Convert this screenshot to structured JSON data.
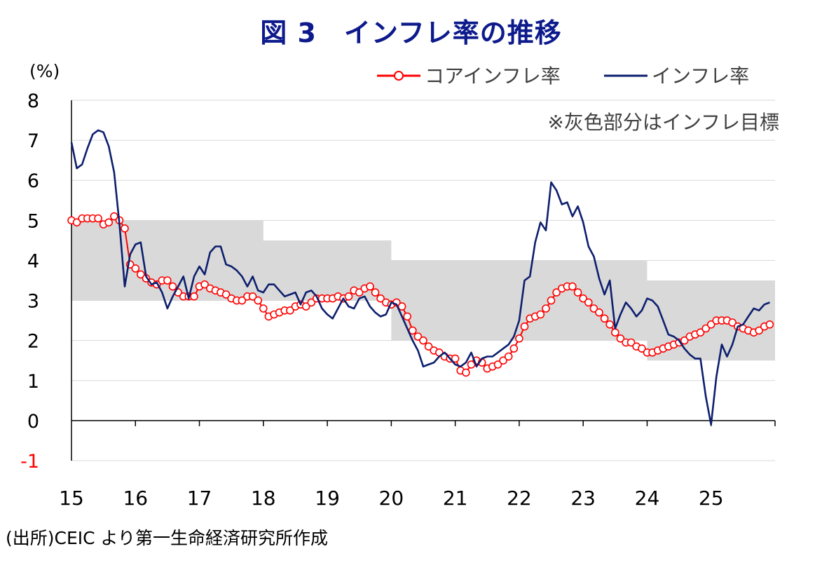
{
  "title": "図 3　インフレ率の推移",
  "source": "(出所)CEIC より第一生命経済研究所作成",
  "colors": {
    "title": "#0d1a8c",
    "core": "#ff0000",
    "headline": "#0d1f6e",
    "band": "#d9d9d9",
    "negative_tick": "#ff0000",
    "grid": "#d9d9d9"
  },
  "chart_data": {
    "type": "line",
    "ylabel": "(%)",
    "ylim": [
      -1,
      8
    ],
    "yticks": [
      -1,
      0,
      1,
      2,
      3,
      4,
      5,
      6,
      7,
      8
    ],
    "xlim": [
      2015,
      2026
    ],
    "xticks": [
      {
        "value": 2015,
        "label": "15"
      },
      {
        "value": 2016,
        "label": "16"
      },
      {
        "value": 2017,
        "label": "17"
      },
      {
        "value": 2018,
        "label": "18"
      },
      {
        "value": 2019,
        "label": "19"
      },
      {
        "value": 2020,
        "label": "20"
      },
      {
        "value": 2021,
        "label": "21"
      },
      {
        "value": 2022,
        "label": "22"
      },
      {
        "value": 2023,
        "label": "23"
      },
      {
        "value": 2024,
        "label": "24"
      },
      {
        "value": 2025,
        "label": "25"
      }
    ],
    "grid": "horizontal",
    "legend_position": "top-right",
    "annotation": "※灰色部分はインフレ目標",
    "target_band": [
      {
        "from": 2015,
        "to": 2018,
        "low": 3,
        "high": 5
      },
      {
        "from": 2018,
        "to": 2020,
        "low": 3,
        "high": 4.5
      },
      {
        "from": 2020,
        "to": 2024,
        "low": 2,
        "high": 4
      },
      {
        "from": 2024,
        "to": 2026,
        "low": 1.5,
        "high": 3.5
      }
    ],
    "series": [
      {
        "name": "コアインフレ率",
        "style": "line-with-circle-markers",
        "x": [
          2015.0,
          2015.083,
          2015.167,
          2015.25,
          2015.333,
          2015.417,
          2015.5,
          2015.583,
          2015.667,
          2015.75,
          2015.833,
          2015.917,
          2016.0,
          2016.083,
          2016.167,
          2016.25,
          2016.333,
          2016.417,
          2016.5,
          2016.583,
          2016.667,
          2016.75,
          2016.833,
          2016.917,
          2017.0,
          2017.083,
          2017.167,
          2017.25,
          2017.333,
          2017.417,
          2017.5,
          2017.583,
          2017.667,
          2017.75,
          2017.833,
          2017.917,
          2018.0,
          2018.083,
          2018.167,
          2018.25,
          2018.333,
          2018.417,
          2018.5,
          2018.583,
          2018.667,
          2018.75,
          2018.833,
          2018.917,
          2019.0,
          2019.083,
          2019.167,
          2019.25,
          2019.333,
          2019.417,
          2019.5,
          2019.583,
          2019.667,
          2019.75,
          2019.833,
          2019.917,
          2020.0,
          2020.083,
          2020.167,
          2020.25,
          2020.333,
          2020.417,
          2020.5,
          2020.583,
          2020.667,
          2020.75,
          2020.833,
          2020.917,
          2021.0,
          2021.083,
          2021.167,
          2021.25,
          2021.333,
          2021.417,
          2021.5,
          2021.583,
          2021.667,
          2021.75,
          2021.833,
          2021.917,
          2022.0,
          2022.083,
          2022.167,
          2022.25,
          2022.333,
          2022.417,
          2022.5,
          2022.583,
          2022.667,
          2022.75,
          2022.833,
          2022.917,
          2023.0,
          2023.083,
          2023.167,
          2023.25,
          2023.333,
          2023.417,
          2023.5,
          2023.583,
          2023.667,
          2023.75,
          2023.833,
          2023.917,
          2024.0,
          2024.083,
          2024.167,
          2024.25,
          2024.333,
          2024.417,
          2024.5,
          2024.583,
          2024.667,
          2024.75,
          2024.833,
          2024.917,
          2025.0,
          2025.083,
          2025.167,
          2025.25,
          2025.333,
          2025.417,
          2025.5,
          2025.583,
          2025.667,
          2025.75,
          2025.833,
          2025.917
        ],
        "values": [
          5.0,
          4.95,
          5.05,
          5.05,
          5.05,
          5.05,
          4.9,
          4.95,
          5.1,
          5.0,
          4.8,
          3.9,
          3.8,
          3.65,
          3.55,
          3.45,
          3.4,
          3.5,
          3.5,
          3.35,
          3.2,
          3.1,
          3.1,
          3.1,
          3.35,
          3.4,
          3.3,
          3.25,
          3.2,
          3.15,
          3.05,
          3.0,
          3.0,
          3.1,
          3.1,
          3.0,
          2.8,
          2.6,
          2.65,
          2.7,
          2.75,
          2.75,
          2.85,
          2.9,
          2.85,
          2.95,
          3.05,
          3.05,
          3.05,
          3.05,
          3.1,
          3.05,
          3.1,
          3.25,
          3.2,
          3.3,
          3.35,
          3.2,
          3.05,
          2.95,
          2.9,
          2.95,
          2.85,
          2.6,
          2.25,
          2.1,
          2.0,
          1.85,
          1.75,
          1.7,
          1.6,
          1.55,
          1.55,
          1.25,
          1.2,
          1.4,
          1.5,
          1.45,
          1.3,
          1.35,
          1.4,
          1.5,
          1.6,
          1.8,
          2.05,
          2.35,
          2.55,
          2.6,
          2.65,
          2.8,
          3.0,
          3.2,
          3.3,
          3.35,
          3.35,
          3.2,
          3.05,
          2.95,
          2.8,
          2.7,
          2.55,
          2.4,
          2.2,
          2.05,
          1.95,
          1.95,
          1.85,
          1.8,
          1.7,
          1.7,
          1.75,
          1.8,
          1.85,
          1.9,
          1.95,
          2.0,
          2.1,
          2.15,
          2.2,
          2.3,
          2.4,
          2.5,
          2.5,
          2.5,
          2.45,
          2.35,
          2.3,
          2.25,
          2.2,
          2.25,
          2.35,
          2.4
        ]
      },
      {
        "name": "インフレ率",
        "style": "line",
        "x": [
          2015.0,
          2015.083,
          2015.167,
          2015.25,
          2015.333,
          2015.417,
          2015.5,
          2015.583,
          2015.667,
          2015.75,
          2015.833,
          2015.917,
          2016.0,
          2016.083,
          2016.167,
          2016.25,
          2016.333,
          2016.417,
          2016.5,
          2016.583,
          2016.667,
          2016.75,
          2016.833,
          2016.917,
          2017.0,
          2017.083,
          2017.167,
          2017.25,
          2017.333,
          2017.417,
          2017.5,
          2017.583,
          2017.667,
          2017.75,
          2017.833,
          2017.917,
          2018.0,
          2018.083,
          2018.167,
          2018.25,
          2018.333,
          2018.417,
          2018.5,
          2018.583,
          2018.667,
          2018.75,
          2018.833,
          2018.917,
          2019.0,
          2019.083,
          2019.167,
          2019.25,
          2019.333,
          2019.417,
          2019.5,
          2019.583,
          2019.667,
          2019.75,
          2019.833,
          2019.917,
          2020.0,
          2020.083,
          2020.167,
          2020.25,
          2020.333,
          2020.417,
          2020.5,
          2020.583,
          2020.667,
          2020.75,
          2020.833,
          2020.917,
          2021.0,
          2021.083,
          2021.167,
          2021.25,
          2021.333,
          2021.417,
          2021.5,
          2021.583,
          2021.667,
          2021.75,
          2021.833,
          2021.917,
          2022.0,
          2022.083,
          2022.167,
          2022.25,
          2022.333,
          2022.417,
          2022.5,
          2022.583,
          2022.667,
          2022.75,
          2022.833,
          2022.917,
          2023.0,
          2023.083,
          2023.167,
          2023.25,
          2023.333,
          2023.417,
          2023.5,
          2023.583,
          2023.667,
          2023.75,
          2023.833,
          2023.917,
          2024.0,
          2024.083,
          2024.167,
          2024.25,
          2024.333,
          2024.417,
          2024.5,
          2024.583,
          2024.667,
          2024.75,
          2024.833,
          2024.917,
          2025.0,
          2025.083,
          2025.167,
          2025.25,
          2025.333,
          2025.417,
          2025.5,
          2025.583,
          2025.667,
          2025.75,
          2025.833,
          2025.917
        ],
        "values": [
          6.95,
          6.3,
          6.4,
          6.8,
          7.15,
          7.25,
          7.2,
          6.85,
          6.2,
          4.9,
          3.35,
          4.15,
          4.4,
          4.45,
          3.6,
          3.4,
          3.45,
          3.2,
          2.8,
          3.1,
          3.35,
          3.6,
          3.05,
          3.6,
          3.85,
          3.65,
          4.2,
          4.35,
          4.35,
          3.9,
          3.85,
          3.75,
          3.6,
          3.35,
          3.6,
          3.25,
          3.2,
          3.4,
          3.4,
          3.25,
          3.1,
          3.15,
          3.2,
          2.9,
          3.2,
          3.25,
          3.1,
          2.8,
          2.65,
          2.55,
          2.8,
          3.05,
          2.85,
          2.8,
          3.05,
          3.1,
          2.85,
          2.7,
          2.6,
          2.65,
          2.95,
          2.9,
          2.6,
          2.3,
          2.0,
          1.75,
          1.35,
          1.4,
          1.45,
          1.6,
          1.7,
          1.55,
          1.4,
          1.35,
          1.45,
          1.7,
          1.35,
          1.55,
          1.6,
          1.6,
          1.7,
          1.8,
          1.9,
          2.1,
          2.5,
          3.5,
          3.6,
          4.45,
          4.95,
          4.75,
          5.95,
          5.75,
          5.4,
          5.45,
          5.1,
          5.35,
          4.95,
          4.35,
          4.1,
          3.55,
          3.15,
          3.5,
          2.3,
          2.65,
          2.95,
          2.8,
          2.6,
          2.75,
          3.05,
          3.0,
          2.85,
          2.5,
          2.15,
          2.1,
          2.0,
          1.8,
          1.65,
          1.55,
          1.55,
          0.6,
          -0.1,
          1.1,
          1.9,
          1.6,
          1.9,
          2.35,
          2.4,
          2.6,
          2.8,
          2.75,
          2.9,
          2.95
        ]
      }
    ]
  }
}
